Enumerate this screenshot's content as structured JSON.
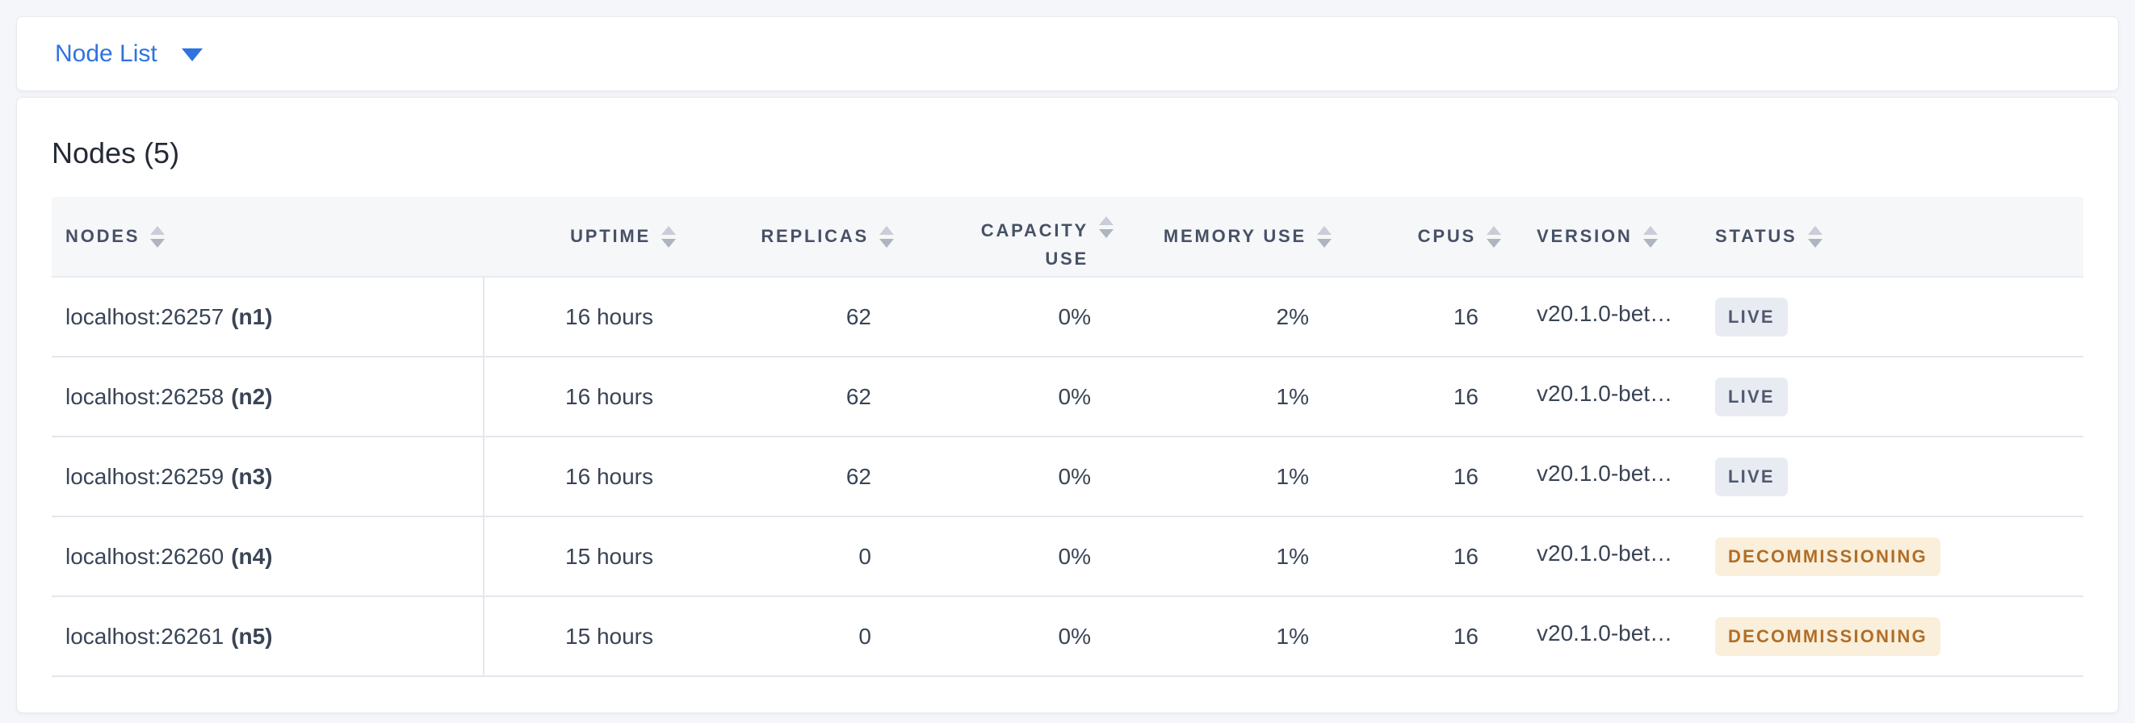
{
  "toolbar": {
    "view_selector": {
      "label": "Node List"
    }
  },
  "panel": {
    "title": "Nodes (5)"
  },
  "table": {
    "columns": [
      {
        "key": "nodes",
        "label": "NODES",
        "align": "left",
        "sortable": true
      },
      {
        "key": "uptime",
        "label": "UPTIME",
        "align": "right",
        "sortable": true
      },
      {
        "key": "replicas",
        "label": "REPLICAS",
        "align": "right",
        "sortable": true
      },
      {
        "key": "capacity_use",
        "label": "CAPACITY USE",
        "align": "right",
        "sortable": true
      },
      {
        "key": "memory_use",
        "label": "MEMORY USE",
        "align": "right",
        "sortable": true
      },
      {
        "key": "cpus",
        "label": "CPUS",
        "align": "right",
        "sortable": true
      },
      {
        "key": "version",
        "label": "VERSION",
        "align": "left",
        "sortable": true
      },
      {
        "key": "status",
        "label": "STATUS",
        "align": "left",
        "sortable": true
      }
    ],
    "rows": [
      {
        "node": "localhost:26257",
        "node_id": "(n1)",
        "uptime": "16 hours",
        "replicas": "62",
        "capacity_use": "0%",
        "memory_use": "2%",
        "cpus": "16",
        "version": "v20.1.0-bet…",
        "status": {
          "label": "LIVE",
          "type": "live"
        }
      },
      {
        "node": "localhost:26258",
        "node_id": "(n2)",
        "uptime": "16 hours",
        "replicas": "62",
        "capacity_use": "0%",
        "memory_use": "1%",
        "cpus": "16",
        "version": "v20.1.0-bet…",
        "status": {
          "label": "LIVE",
          "type": "live"
        }
      },
      {
        "node": "localhost:26259",
        "node_id": "(n3)",
        "uptime": "16 hours",
        "replicas": "62",
        "capacity_use": "0%",
        "memory_use": "1%",
        "cpus": "16",
        "version": "v20.1.0-bet…",
        "status": {
          "label": "LIVE",
          "type": "live"
        }
      },
      {
        "node": "localhost:26260",
        "node_id": "(n4)",
        "uptime": "15 hours",
        "replicas": "0",
        "capacity_use": "0%",
        "memory_use": "1%",
        "cpus": "16",
        "version": "v20.1.0-bet…",
        "status": {
          "label": "DECOMMISSIONING",
          "type": "decommissioning"
        }
      },
      {
        "node": "localhost:26261",
        "node_id": "(n5)",
        "uptime": "15 hours",
        "replicas": "0",
        "capacity_use": "0%",
        "memory_use": "1%",
        "cpus": "16",
        "version": "v20.1.0-bet…",
        "status": {
          "label": "DECOMMISSIONING",
          "type": "decommissioning"
        }
      }
    ]
  },
  "colors": {
    "accent_blue": "#2f73e0",
    "header_text": "#475166",
    "cell_text": "#394455",
    "badge_live_bg": "#e8ebf2",
    "badge_live_text": "#50596d",
    "badge_decommissioning_bg": "#faefda",
    "badge_decommissioning_text": "#b06e29",
    "page_background": "#f4f6fa"
  }
}
